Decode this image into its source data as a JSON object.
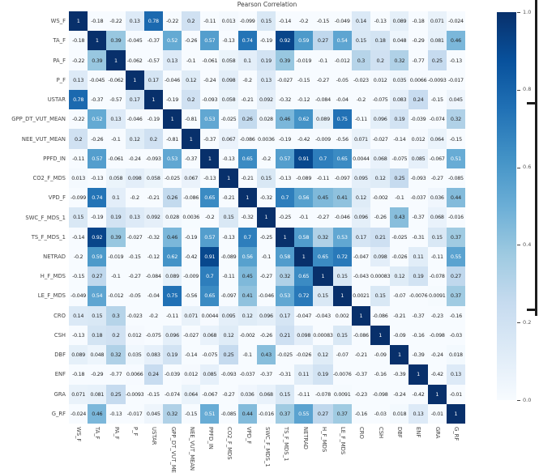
{
  "chart_data": {
    "type": "heatmap",
    "title": "Pearson Correlation",
    "variables": [
      "WS_F",
      "TA_F",
      "PA_F",
      "P_F",
      "USTAR",
      "GPP_DT_VUT_MEAN",
      "NEE_VUT_MEAN",
      "PPFD_IN",
      "CO2_F_MDS",
      "VPD_F",
      "SWC_F_MDS_1",
      "TS_F_MDS_1",
      "NETRAD",
      "H_F_MDS",
      "LE_F_MDS",
      "CRO",
      "CSH",
      "DBF",
      "ENF",
      "GRA",
      "G_RF"
    ],
    "matrix": [
      [
        "1",
        "-0.18",
        "-0.22",
        "0.13",
        "0.78",
        "-0.22",
        "0.2",
        "-0.11",
        "0.013",
        "-0.099",
        "0.15",
        "-0.14",
        "-0.2",
        "-0.15",
        "-0.049",
        "0.14",
        "-0.13",
        "0.089",
        "-0.18",
        "0.071",
        "-0.024"
      ],
      [
        "-0.18",
        "1",
        "0.39",
        "-0.045",
        "-0.37",
        "0.52",
        "-0.26",
        "0.57",
        "-0.13",
        "0.74",
        "-0.19",
        "0.92",
        "0.59",
        "0.27",
        "0.54",
        "0.15",
        "0.18",
        "0.048",
        "-0.29",
        "0.081",
        "0.46"
      ],
      [
        "-0.22",
        "0.39",
        "1",
        "-0.062",
        "-0.57",
        "0.13",
        "-0.1",
        "-0.061",
        "0.058",
        "0.1",
        "0.19",
        "0.39",
        "-0.019",
        "-0.1",
        "-0.012",
        "0.3",
        "0.2",
        "0.32",
        "-0.77",
        "0.25",
        "-0.13"
      ],
      [
        "0.13",
        "-0.045",
        "-0.062",
        "1",
        "0.17",
        "-0.046",
        "0.12",
        "-0.24",
        "0.098",
        "-0.2",
        "0.13",
        "-0.027",
        "-0.15",
        "-0.27",
        "-0.05",
        "-0.023",
        "0.012",
        "0.035",
        "0.0066",
        "-0.0093",
        "-0.017"
      ],
      [
        "0.78",
        "-0.37",
        "-0.57",
        "0.17",
        "1",
        "-0.19",
        "0.2",
        "-0.093",
        "0.058",
        "-0.21",
        "0.092",
        "-0.32",
        "-0.12",
        "-0.084",
        "-0.04",
        "-0.2",
        "-0.075",
        "0.083",
        "0.24",
        "-0.15",
        "0.045"
      ],
      [
        "-0.22",
        "0.52",
        "0.13",
        "-0.046",
        "-0.19",
        "1",
        "-0.81",
        "0.53",
        "-0.025",
        "0.26",
        "0.028",
        "0.46",
        "0.62",
        "0.089",
        "0.75",
        "-0.11",
        "0.096",
        "0.19",
        "-0.039",
        "-0.074",
        "0.32"
      ],
      [
        "0.2",
        "-0.26",
        "-0.1",
        "0.12",
        "0.2",
        "-0.81",
        "1",
        "-0.37",
        "0.067",
        "-0.086",
        "0.0036",
        "-0.19",
        "-0.42",
        "-0.009",
        "-0.56",
        "0.071",
        "-0.027",
        "-0.14",
        "0.012",
        "0.064",
        "-0.15"
      ],
      [
        "-0.11",
        "0.57",
        "-0.061",
        "-0.24",
        "-0.093",
        "0.53",
        "-0.37",
        "1",
        "-0.13",
        "0.65",
        "-0.2",
        "0.57",
        "0.91",
        "0.7",
        "0.65",
        "0.0044",
        "0.068",
        "-0.075",
        "0.085",
        "-0.067",
        "0.51"
      ],
      [
        "0.013",
        "-0.13",
        "0.058",
        "0.098",
        "0.058",
        "-0.025",
        "0.067",
        "-0.13",
        "1",
        "-0.21",
        "0.15",
        "-0.13",
        "-0.089",
        "-0.11",
        "-0.097",
        "0.095",
        "0.12",
        "0.25",
        "-0.093",
        "-0.27",
        "-0.085"
      ],
      [
        "-0.099",
        "0.74",
        "0.1",
        "-0.2",
        "-0.21",
        "0.26",
        "-0.086",
        "0.65",
        "-0.21",
        "1",
        "-0.32",
        "0.7",
        "0.56",
        "0.45",
        "0.41",
        "0.12",
        "-0.002",
        "-0.1",
        "-0.037",
        "0.036",
        "0.44"
      ],
      [
        "0.15",
        "-0.19",
        "0.19",
        "0.13",
        "0.092",
        "0.028",
        "0.0036",
        "-0.2",
        "0.15",
        "-0.32",
        "1",
        "-0.25",
        "-0.1",
        "-0.27",
        "-0.046",
        "0.096",
        "-0.26",
        "0.43",
        "-0.37",
        "0.068",
        "-0.016"
      ],
      [
        "-0.14",
        "0.92",
        "0.39",
        "-0.027",
        "-0.32",
        "0.46",
        "-0.19",
        "0.57",
        "-0.13",
        "0.7",
        "-0.25",
        "1",
        "0.58",
        "0.32",
        "0.53",
        "0.17",
        "0.21",
        "-0.025",
        "-0.31",
        "0.15",
        "0.37"
      ],
      [
        "-0.2",
        "0.59",
        "-0.019",
        "-0.15",
        "-0.12",
        "0.62",
        "-0.42",
        "0.91",
        "-0.089",
        "0.56",
        "-0.1",
        "0.58",
        "1",
        "0.65",
        "0.72",
        "-0.047",
        "0.098",
        "-0.026",
        "0.11",
        "-0.11",
        "0.55"
      ],
      [
        "-0.15",
        "0.27",
        "-0.1",
        "-0.27",
        "-0.084",
        "0.089",
        "-0.009",
        "0.7",
        "-0.11",
        "0.45",
        "-0.27",
        "0.32",
        "0.65",
        "1",
        "0.15",
        "-0.043",
        "0.00083",
        "0.12",
        "0.19",
        "-0.078",
        "0.27"
      ],
      [
        "-0.049",
        "0.54",
        "-0.012",
        "-0.05",
        "-0.04",
        "0.75",
        "-0.56",
        "0.65",
        "-0.097",
        "0.41",
        "-0.046",
        "0.53",
        "0.72",
        "0.15",
        "1",
        "0.0021",
        "0.15",
        "-0.07",
        "-0.0076",
        "0.0091",
        "0.37"
      ],
      [
        "0.14",
        "0.15",
        "0.3",
        "-0.023",
        "-0.2",
        "-0.11",
        "0.071",
        "0.0044",
        "0.095",
        "0.12",
        "0.096",
        "0.17",
        "-0.047",
        "-0.043",
        "0.002",
        "1",
        "-0.086",
        "-0.21",
        "-0.37",
        "-0.23",
        "-0.16"
      ],
      [
        "-0.13",
        "0.18",
        "0.2",
        "0.012",
        "-0.075",
        "0.096",
        "-0.027",
        "0.068",
        "0.12",
        "-0.002",
        "-0.26",
        "0.21",
        "0.098",
        "0.00083",
        "0.15",
        "-0.086",
        "1",
        "-0.09",
        "-0.16",
        "-0.098",
        "-0.03"
      ],
      [
        "0.089",
        "0.048",
        "0.32",
        "0.035",
        "0.083",
        "0.19",
        "-0.14",
        "-0.075",
        "0.25",
        "-0.1",
        "0.43",
        "-0.025",
        "-0.026",
        "0.12",
        "-0.07",
        "-0.21",
        "-0.09",
        "1",
        "-0.39",
        "-0.24",
        "0.018"
      ],
      [
        "-0.18",
        "-0.29",
        "-0.77",
        "0.0066",
        "0.24",
        "-0.039",
        "0.012",
        "0.085",
        "-0.093",
        "-0.037",
        "-0.37",
        "-0.31",
        "0.11",
        "0.19",
        "-0.0076",
        "-0.37",
        "-0.16",
        "-0.39",
        "1",
        "-0.42",
        "0.13"
      ],
      [
        "0.071",
        "0.081",
        "0.25",
        "-0.0093",
        "-0.15",
        "-0.074",
        "0.064",
        "-0.067",
        "-0.27",
        "0.036",
        "0.068",
        "0.15",
        "-0.11",
        "-0.078",
        "0.0091",
        "-0.23",
        "-0.098",
        "-0.24",
        "-0.42",
        "1",
        "-0.01"
      ],
      [
        "-0.024",
        "0.46",
        "-0.13",
        "-0.017",
        "0.045",
        "0.32",
        "-0.15",
        "0.51",
        "-0.085",
        "0.44",
        "-0.016",
        "0.37",
        "0.55",
        "0.27",
        "0.37",
        "-0.16",
        "-0.03",
        "0.018",
        "0.13",
        "-0.01",
        "1"
      ]
    ],
    "colorbar": {
      "ticks": [
        "1.0",
        "0.8",
        "0.6",
        "0.4",
        "0.2",
        "0.0"
      ],
      "range": [
        0.0,
        1.0
      ],
      "colormap": "Blues",
      "color_stops": [
        "#f7fbff",
        "#deebf7",
        "#c6dbef",
        "#9ecae1",
        "#6baed6",
        "#4292c6",
        "#2171b5",
        "#08519c",
        "#08306b"
      ],
      "annotation_light_text": "#ffffff",
      "annotation_dark_text": "#262626"
    },
    "layout": {
      "x_tick_rotation": 90,
      "grid": false,
      "legend_position": "right-colorbar"
    }
  }
}
